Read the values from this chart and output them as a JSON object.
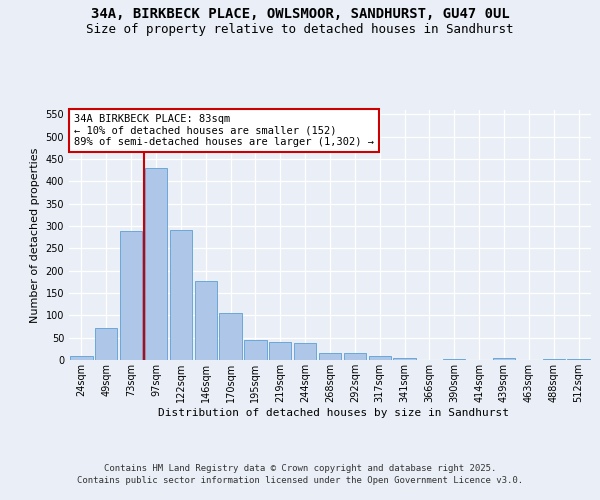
{
  "title_line1": "34A, BIRKBECK PLACE, OWLSMOOR, SANDHURST, GU47 0UL",
  "title_line2": "Size of property relative to detached houses in Sandhurst",
  "xlabel": "Distribution of detached houses by size in Sandhurst",
  "ylabel": "Number of detached properties",
  "categories": [
    "24sqm",
    "49sqm",
    "73sqm",
    "97sqm",
    "122sqm",
    "146sqm",
    "170sqm",
    "195sqm",
    "219sqm",
    "244sqm",
    "268sqm",
    "292sqm",
    "317sqm",
    "341sqm",
    "366sqm",
    "390sqm",
    "414sqm",
    "439sqm",
    "463sqm",
    "488sqm",
    "512sqm"
  ],
  "values": [
    8,
    71,
    288,
    430,
    291,
    178,
    106,
    44,
    41,
    39,
    16,
    15,
    8,
    5,
    0,
    3,
    0,
    4,
    0,
    3,
    2
  ],
  "bar_color": "#aec6e8",
  "bar_edge_color": "#5a9fd4",
  "annotation_box_text": "34A BIRKBECK PLACE: 83sqm\n← 10% of detached houses are smaller (152)\n89% of semi-detached houses are larger (1,302) →",
  "annotation_box_color": "#ffffff",
  "annotation_box_edge_color": "#cc0000",
  "red_line_x": 2.5,
  "ylim": [
    0,
    560
  ],
  "yticks": [
    0,
    50,
    100,
    150,
    200,
    250,
    300,
    350,
    400,
    450,
    500,
    550
  ],
  "bg_color": "#eaeff7",
  "plot_bg_color": "#eaeff7",
  "footer_line1": "Contains HM Land Registry data © Crown copyright and database right 2025.",
  "footer_line2": "Contains public sector information licensed under the Open Government Licence v3.0.",
  "title_fontsize": 10,
  "subtitle_fontsize": 9,
  "axis_label_fontsize": 8,
  "tick_fontsize": 7,
  "annotation_fontsize": 7.5,
  "footer_fontsize": 6.5
}
